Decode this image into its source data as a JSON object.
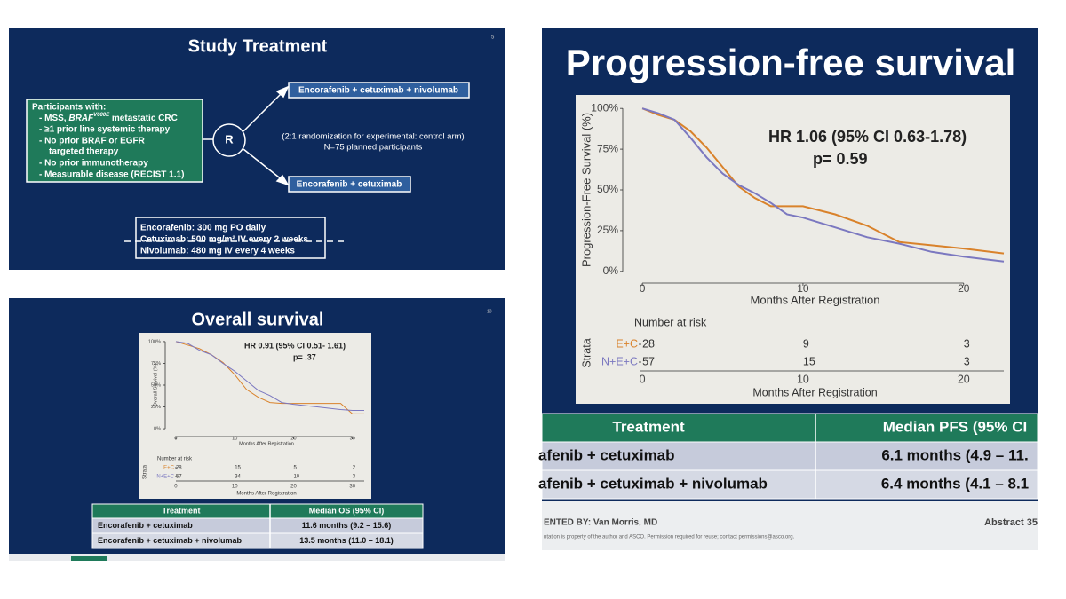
{
  "chart_data": [
    {
      "type": "line",
      "title": "Overall survival",
      "x": [
        0,
        2,
        4,
        6,
        8,
        10,
        12,
        14,
        16,
        18,
        20,
        24,
        28,
        30,
        32
      ],
      "series": [
        {
          "name": "E+C",
          "color": "#d9822b",
          "values": [
            100,
            96,
            92,
            85,
            76,
            62,
            45,
            36,
            30,
            29,
            29,
            29,
            29,
            17,
            17
          ]
        },
        {
          "name": "N+E+C",
          "color": "#7b78c0",
          "values": [
            100,
            98,
            90,
            85,
            75,
            66,
            55,
            44,
            38,
            30,
            28,
            25,
            22,
            21,
            21
          ]
        }
      ],
      "xlabel": "Months After Registration",
      "ylabel": "Overall Survival (%)",
      "xlim": [
        -1.2,
        32
      ],
      "xticks": [
        0,
        10,
        20,
        30
      ],
      "ylim": [
        -5,
        105
      ],
      "yticks": [
        {
          "value": 0,
          "label": "0%"
        },
        {
          "value": 25,
          "label": "25%"
        },
        {
          "value": 50,
          "label": "50%"
        },
        {
          "value": 75,
          "label": "75%"
        },
        {
          "value": 100,
          "label": "100%"
        }
      ],
      "annotations": [
        "HR 0.91 (95% CI  0.51- 1.61)",
        "p= .37"
      ],
      "risk_table": {
        "title": "Number at risk",
        "strata_label": "Strata",
        "rows": [
          [
            28,
            15,
            5,
            2
          ],
          [
            57,
            34,
            10,
            3
          ]
        ]
      }
    },
    {
      "type": "line",
      "title": "Progression-free survival",
      "x": [
        0,
        1,
        2,
        3,
        4,
        5,
        6,
        7,
        8,
        9,
        10,
        12,
        14,
        16,
        18,
        20,
        22.5
      ],
      "series": [
        {
          "name": "E+C",
          "color": "#d9822b",
          "values": [
            100,
            96,
            93,
            86,
            76,
            64,
            52,
            45,
            40,
            40,
            40,
            35,
            28,
            18,
            16,
            14,
            11
          ]
        },
        {
          "name": "N+E+C",
          "color": "#7b78c0",
          "values": [
            100,
            97,
            93,
            82,
            70,
            60,
            53,
            48,
            42,
            35,
            33,
            27,
            21,
            17,
            12,
            9,
            6
          ]
        }
      ],
      "xlabel": "Months After Registration",
      "ylabel": "Progression-Free Survival (%)",
      "xlim": [
        -1,
        22.5
      ],
      "xticks": [
        0,
        10,
        20
      ],
      "ylim": [
        -5,
        105
      ],
      "yticks": [
        {
          "value": 0,
          "label": "0%"
        },
        {
          "value": 25,
          "label": "25%"
        },
        {
          "value": 50,
          "label": "50%"
        },
        {
          "value": 75,
          "label": "75%"
        },
        {
          "value": 100,
          "label": "100%"
        }
      ],
      "annotations": [
        "HR 1.06 (95% CI  0.63-1.78)",
        "p= 0.59"
      ],
      "risk_table": {
        "title": "Number at risk",
        "strata_label": "Strata",
        "rows": [
          [
            28,
            9,
            3
          ],
          [
            57,
            15,
            3
          ]
        ]
      }
    }
  ],
  "study_treatment": {
    "title": "Study Treatment",
    "page": "5",
    "participants": {
      "heading": "Participants with:",
      "braf_line": {
        "before": "- MSS, ",
        "gene": "BRAF",
        "mutation": "V600E",
        "after": " metastatic CRC"
      },
      "lines": [
        "- ≥1 prior line systemic therapy",
        "- No prior BRAF or EGFR",
        "targeted therapy",
        "- No prior immunotherapy",
        "- Measurable disease (RECIST 1.1)"
      ]
    },
    "randomization_symbol": "R",
    "arms": [
      "Encorafenib + cetuximab + nivolumab",
      "Encorafenib + cetuximab"
    ],
    "randomization": [
      "(2:1 randomization for experimental: control arm)",
      "N=75 planned participants"
    ],
    "dosing": [
      "Encorafenib: 300 mg PO daily",
      "Cetuximab: 500 mg/m² IV every 2 weeks",
      "Nivolumab: 480 mg IV every 4 weeks"
    ]
  },
  "os_slide": {
    "page": "13",
    "table": {
      "header": [
        "Treatment",
        "Median OS (95% CI)"
      ],
      "rows": [
        [
          "Encorafenib + cetuximab",
          "11.6 months (9.2 – 15.6)"
        ],
        [
          "Encorafenib + cetuximab + nivolumab",
          "13.5 months (11.0 – 18.1)"
        ]
      ]
    }
  },
  "pfs_slide": {
    "table": {
      "header": [
        "Treatment",
        "Median PFS (95% CI"
      ],
      "rows": [
        [
          "afenib + cetuximab",
          "6.1 months (4.9 – 11."
        ],
        [
          "afenib + cetuximab + nivolumab",
          "6.4 months (4.1 – 8.1"
        ]
      ]
    },
    "footer": {
      "presenter": "ENTED BY: Van Morris, MD",
      "abstract": "Abstract 35",
      "notice": "ntation is property of the author and ASCO. Permission required for reuse; contact permissions@asco.org."
    }
  }
}
